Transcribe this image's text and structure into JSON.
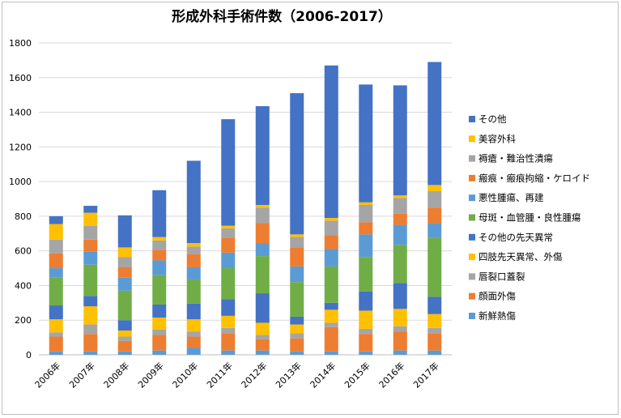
{
  "chart_data": {
    "type": "bar",
    "stacked": true,
    "title": "形成外科手術件数（2006-2017）",
    "xlabel": "",
    "ylabel": "",
    "ylim": [
      0,
      1800
    ],
    "yticks": [
      0,
      200,
      400,
      600,
      800,
      1000,
      1200,
      1400,
      1600,
      1800
    ],
    "grid": true,
    "legend_position": "right",
    "categories": [
      "2006年",
      "2007年",
      "2008年",
      "2009年",
      "2010年",
      "2011年",
      "2012年",
      "2013年",
      "2014年",
      "2015年",
      "2016年",
      "2017年"
    ],
    "series": [
      {
        "name": "新鮮熱傷",
        "color": "#5b9bd5",
        "values": [
          20,
          20,
          20,
          25,
          40,
          25,
          25,
          20,
          20,
          20,
          25,
          25
        ]
      },
      {
        "name": "顔面外傷",
        "color": "#ed7d31",
        "values": [
          85,
          100,
          60,
          90,
          65,
          100,
          65,
          75,
          140,
          100,
          110,
          100
        ]
      },
      {
        "name": "唇裂口蓋裂",
        "color": "#a5a5a5",
        "values": [
          25,
          55,
          25,
          30,
          30,
          30,
          25,
          30,
          25,
          30,
          30,
          30
        ]
      },
      {
        "name": "四肢先天異常、外傷",
        "color": "#ffc000",
        "values": [
          75,
          105,
          35,
          70,
          70,
          70,
          70,
          50,
          75,
          105,
          100,
          80
        ]
      },
      {
        "name": "その他の先天異常",
        "color": "#4472c4",
        "values": [
          80,
          60,
          60,
          75,
          90,
          95,
          170,
          45,
          40,
          110,
          150,
          100
        ]
      },
      {
        "name": "母斑・血管腫・良性腫瘍",
        "color": "#70ad47",
        "values": [
          160,
          180,
          170,
          170,
          140,
          180,
          215,
          200,
          210,
          200,
          220,
          340
        ]
      },
      {
        "name": "悪性腫瘍、再建",
        "color": "#5b9bd5",
        "values": [
          55,
          75,
          75,
          85,
          70,
          90,
          75,
          90,
          100,
          130,
          115,
          85
        ]
      },
      {
        "name": "瘢痕・瘢痕拘縮・ケロイド",
        "color": "#ed7d31",
        "values": [
          85,
          70,
          60,
          60,
          75,
          85,
          115,
          110,
          80,
          70,
          65,
          90
        ]
      },
      {
        "name": "褥瘡・難治性潰瘍",
        "color": "#a5a5a5",
        "values": [
          80,
          80,
          60,
          55,
          45,
          55,
          90,
          60,
          85,
          100,
          90,
          95
        ]
      },
      {
        "name": "美容外科",
        "color": "#ffc000",
        "values": [
          90,
          75,
          55,
          20,
          20,
          15,
          15,
          15,
          15,
          15,
          15,
          35
        ]
      },
      {
        "name": "その他",
        "color": "#4472c4",
        "values": [
          45,
          40,
          185,
          270,
          475,
          615,
          570,
          815,
          880,
          680,
          635,
          710
        ]
      }
    ]
  }
}
